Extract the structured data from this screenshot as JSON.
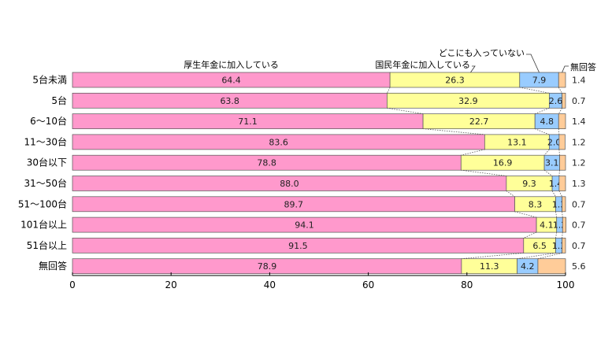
{
  "chart_data": {
    "type": "bar",
    "orientation": "horizontal",
    "stacked": true,
    "categories": [
      "5台未満",
      "5台",
      "6～10台",
      "11～30台",
      "30台以下",
      "31～50台",
      "51～100台",
      "101台以上",
      "51台以上",
      "無回答"
    ],
    "series": [
      {
        "name": "厚生年金に加入している",
        "color": "#ff99cc",
        "values": [
          64.4,
          63.8,
          71.1,
          83.6,
          78.8,
          88.0,
          89.7,
          94.1,
          91.5,
          78.9
        ],
        "labels": [
          "64.4",
          "63.8",
          "71.1",
          "83.6",
          "78.8",
          "88.0",
          "89.7",
          "94.1",
          "91.5",
          "78.9"
        ]
      },
      {
        "name": "国民年金に加入している",
        "color": "#ffff99",
        "values": [
          26.3,
          32.9,
          22.7,
          13.1,
          16.9,
          9.3,
          8.3,
          4.1,
          6.5,
          11.3
        ],
        "labels": [
          "26.3",
          "32.9",
          "22.7",
          "13.1",
          "16.9",
          "9.3",
          "8.3",
          "4.1",
          "6.5",
          "11.3"
        ]
      },
      {
        "name": "どこにも入っていない",
        "color": "#99ccff",
        "values": [
          7.9,
          2.6,
          4.8,
          2.0,
          3.1,
          1.4,
          1.3,
          1.2,
          1.3,
          4.2
        ],
        "labels": [
          "7.9",
          "2.6",
          "4.8",
          "2.0",
          "3.1",
          "1.4",
          "1.3",
          "1.2",
          "1.3",
          "4.2"
        ]
      },
      {
        "name": "無回答",
        "color": "#ffcc99",
        "values": [
          1.4,
          0.7,
          1.4,
          1.2,
          1.2,
          1.3,
          0.7,
          0.7,
          0.7,
          5.6
        ],
        "labels": [
          "1.4",
          "0.7",
          "1.4",
          "1.2",
          "1.2",
          "1.3",
          "0.7",
          "0.7",
          "0.7",
          "5.6"
        ]
      }
    ],
    "xlim": [
      0,
      100
    ],
    "xticks": [
      "0",
      "20",
      "40",
      "60",
      "80",
      "100"
    ],
    "legend": "labels-above-top-bar",
    "grid": false
  }
}
